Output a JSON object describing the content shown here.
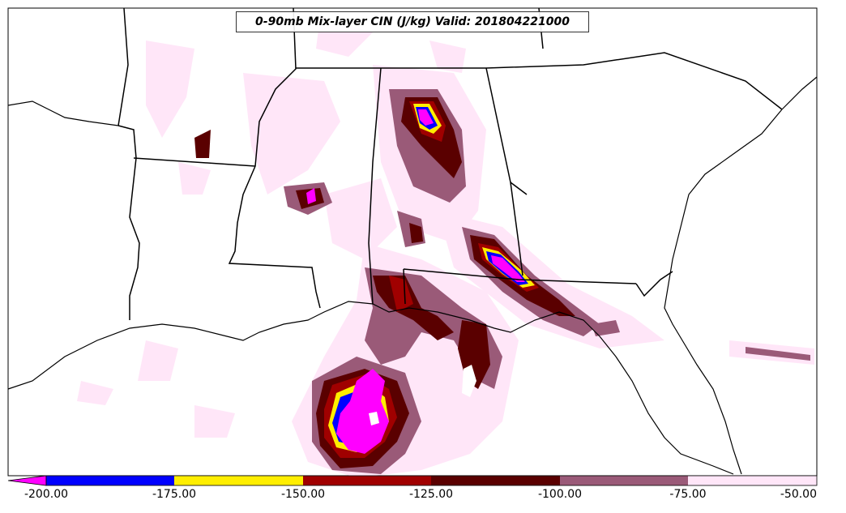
{
  "title": "0-90mb Mix-layer CIN (J/kg) Valid: 201804221000",
  "colorbar": {
    "ticks": [
      "-200.00",
      "-175.00",
      "-150.00",
      "-125.00",
      "-100.00",
      "-75.00",
      "-50.00"
    ],
    "bins": [
      {
        "from": -200,
        "to": -175,
        "color": "#0000ff"
      },
      {
        "from": -175,
        "to": -150,
        "color": "#ffee00"
      },
      {
        "from": -150,
        "to": -125,
        "color": "#a00000"
      },
      {
        "from": -125,
        "to": -100,
        "color": "#5a0000"
      },
      {
        "from": -100,
        "to": -75,
        "color": "#9a5a78"
      },
      {
        "from": -75,
        "to": -50,
        "color": "#ffe6f8"
      }
    ],
    "extend_color": "#ff00ff"
  },
  "colors": {
    "lightest": "#ffe6f8",
    "mauve": "#9a5a78",
    "dark_red": "#5a0000",
    "red": "#a00000",
    "yellow": "#ffee00",
    "blue": "#0000ff",
    "magenta": "#ff00ff"
  }
}
